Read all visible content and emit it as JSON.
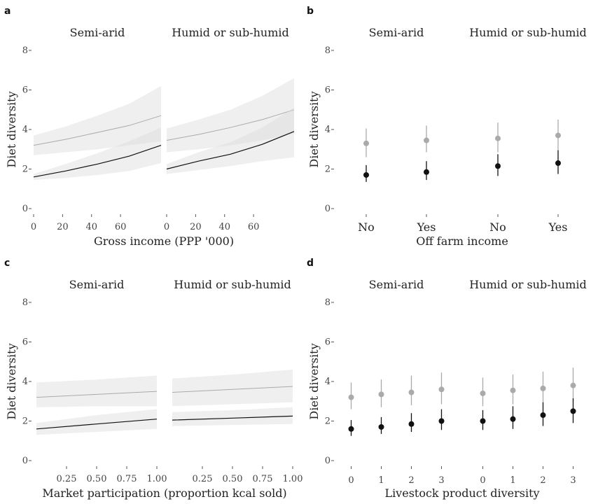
{
  "chart_data": [
    {
      "panel": "a",
      "type": "line",
      "facets": [
        "Semi-arid",
        "Humid or sub-humid"
      ],
      "xlabel": "Gross income (PPP '000)",
      "ylabel": "Diet diversity",
      "ylim": [
        0,
        8
      ],
      "yticks": [
        "0",
        "2",
        "4",
        "6",
        "8"
      ],
      "xlim": [
        0,
        88
      ],
      "xticks": [
        0,
        20,
        40,
        60
      ],
      "xtick_labels": [
        "0",
        "20",
        "40",
        "60"
      ],
      "bands": true,
      "series": [
        {
          "facet": "Semi-arid",
          "color": "#aaaaaa",
          "x": [
            0,
            22,
            44,
            66,
            88
          ],
          "y": [
            3.2,
            3.5,
            3.85,
            4.2,
            4.7
          ],
          "lower": [
            2.7,
            2.85,
            3.0,
            3.2,
            3.4
          ],
          "upper": [
            3.7,
            4.15,
            4.7,
            5.3,
            6.2
          ]
        },
        {
          "facet": "Semi-arid",
          "color": "#111111",
          "x": [
            0,
            22,
            44,
            66,
            88
          ],
          "y": [
            1.6,
            1.9,
            2.25,
            2.65,
            3.2
          ],
          "lower": [
            1.45,
            1.55,
            1.7,
            1.9,
            2.3
          ],
          "upper": [
            1.75,
            2.25,
            2.8,
            3.4,
            4.1
          ]
        },
        {
          "facet": "Humid or sub-humid",
          "color": "#aaaaaa",
          "x": [
            0,
            22,
            44,
            66,
            88
          ],
          "y": [
            3.45,
            3.75,
            4.1,
            4.5,
            5.0
          ],
          "lower": [
            2.85,
            3.0,
            3.2,
            3.45,
            3.8
          ],
          "upper": [
            4.05,
            4.5,
            5.0,
            5.7,
            6.6
          ]
        },
        {
          "facet": "Humid or sub-humid",
          "color": "#111111",
          "x": [
            0,
            22,
            44,
            66,
            88
          ],
          "y": [
            2.0,
            2.4,
            2.75,
            3.25,
            3.9
          ],
          "lower": [
            1.75,
            1.95,
            2.15,
            2.4,
            2.6
          ],
          "upper": [
            2.25,
            2.85,
            3.35,
            4.1,
            5.1
          ]
        }
      ]
    },
    {
      "panel": "b",
      "type": "scatter",
      "facets": [
        "Semi-arid",
        "Humid or sub-humid"
      ],
      "xlabel": "Off farm income",
      "ylabel": "Diet diversity",
      "ylim": [
        0,
        8
      ],
      "yticks": [
        "0",
        "2",
        "4",
        "6",
        "8"
      ],
      "categories": [
        "No",
        "Yes"
      ],
      "series": [
        {
          "facet": "Semi-arid",
          "color": "#aaaaaa",
          "x": [
            "No",
            "Yes"
          ],
          "y": [
            3.3,
            3.45
          ],
          "lower": [
            2.6,
            2.85
          ],
          "upper": [
            4.05,
            4.2
          ]
        },
        {
          "facet": "Semi-arid",
          "color": "#111111",
          "x": [
            "No",
            "Yes"
          ],
          "y": [
            1.7,
            1.85
          ],
          "lower": [
            1.35,
            1.45
          ],
          "upper": [
            2.2,
            2.4
          ]
        },
        {
          "facet": "Humid or sub-humid",
          "color": "#aaaaaa",
          "x": [
            "No",
            "Yes"
          ],
          "y": [
            3.55,
            3.7
          ],
          "lower": [
            2.85,
            2.95
          ],
          "upper": [
            4.35,
            4.5
          ]
        },
        {
          "facet": "Humid or sub-humid",
          "color": "#111111",
          "x": [
            "No",
            "Yes"
          ],
          "y": [
            2.15,
            2.3
          ],
          "lower": [
            1.65,
            1.75
          ],
          "upper": [
            2.75,
            2.95
          ]
        }
      ]
    },
    {
      "panel": "c",
      "type": "line",
      "facets": [
        "Semi-arid",
        "Humid or sub-humid"
      ],
      "xlabel": "Market participation (proportion kcal sold)",
      "ylabel": "Diet diversity",
      "ylim": [
        0,
        8
      ],
      "yticks": [
        "0",
        "2",
        "4",
        "6",
        "8"
      ],
      "xlim": [
        0,
        1.0
      ],
      "xticks": [
        0.25,
        0.5,
        0.75,
        1.0
      ],
      "xtick_labels": [
        "0.25",
        "0.50",
        "0.75",
        "1.00"
      ],
      "bands": true,
      "series": [
        {
          "facet": "Semi-arid",
          "color": "#aaaaaa",
          "x": [
            0,
            0.5,
            1.0
          ],
          "y": [
            3.2,
            3.35,
            3.5
          ],
          "lower": [
            2.7,
            2.75,
            2.75
          ],
          "upper": [
            3.95,
            4.1,
            4.3
          ]
        },
        {
          "facet": "Semi-arid",
          "color": "#111111",
          "x": [
            0,
            0.5,
            1.0
          ],
          "y": [
            1.6,
            1.85,
            2.1
          ],
          "lower": [
            1.3,
            1.45,
            1.6
          ],
          "upper": [
            1.9,
            2.3,
            2.6
          ]
        },
        {
          "facet": "Humid or sub-humid",
          "color": "#aaaaaa",
          "x": [
            0,
            0.5,
            1.0
          ],
          "y": [
            3.45,
            3.6,
            3.75
          ],
          "lower": [
            2.75,
            2.85,
            2.95
          ],
          "upper": [
            4.15,
            4.35,
            4.6
          ]
        },
        {
          "facet": "Humid or sub-humid",
          "color": "#111111",
          "x": [
            0,
            0.5,
            1.0
          ],
          "y": [
            2.05,
            2.15,
            2.25
          ],
          "lower": [
            1.75,
            1.8,
            1.85
          ],
          "upper": [
            2.45,
            2.55,
            2.7
          ]
        }
      ]
    },
    {
      "panel": "d",
      "type": "scatter",
      "facets": [
        "Semi-arid",
        "Humid or sub-humid"
      ],
      "xlabel": "Livestock product diversity",
      "ylabel": "Diet diversity",
      "ylim": [
        0,
        8
      ],
      "yticks": [
        "0",
        "2",
        "4",
        "6",
        "8"
      ],
      "categories": [
        "0",
        "1",
        "2",
        "3"
      ],
      "series": [
        {
          "facet": "Semi-arid",
          "color": "#aaaaaa",
          "x": [
            "0",
            "1",
            "2",
            "3"
          ],
          "y": [
            3.2,
            3.35,
            3.45,
            3.6
          ],
          "lower": [
            2.6,
            2.7,
            2.8,
            2.85
          ],
          "upper": [
            3.95,
            4.1,
            4.3,
            4.45
          ]
        },
        {
          "facet": "Semi-arid",
          "color": "#111111",
          "x": [
            "0",
            "1",
            "2",
            "3"
          ],
          "y": [
            1.6,
            1.7,
            1.85,
            2.0
          ],
          "lower": [
            1.25,
            1.35,
            1.45,
            1.55
          ],
          "upper": [
            2.05,
            2.2,
            2.4,
            2.6
          ]
        },
        {
          "facet": "Humid or sub-humid",
          "color": "#aaaaaa",
          "x": [
            "0",
            "1",
            "2",
            "3"
          ],
          "y": [
            3.4,
            3.55,
            3.65,
            3.8
          ],
          "lower": [
            2.75,
            2.85,
            2.95,
            3.0
          ],
          "upper": [
            4.2,
            4.35,
            4.5,
            4.7
          ]
        },
        {
          "facet": "Humid or sub-humid",
          "color": "#111111",
          "x": [
            "0",
            "1",
            "2",
            "3"
          ],
          "y": [
            2.0,
            2.1,
            2.3,
            2.5
          ],
          "lower": [
            1.55,
            1.6,
            1.75,
            1.9
          ],
          "upper": [
            2.55,
            2.75,
            2.95,
            3.15
          ]
        }
      ]
    }
  ]
}
